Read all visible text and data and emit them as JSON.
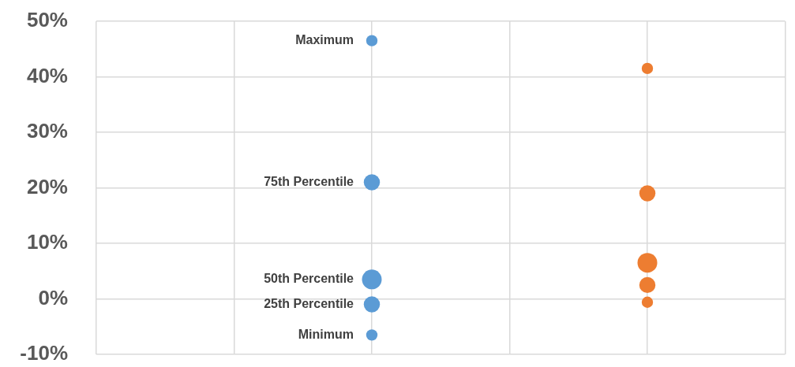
{
  "chart_data": {
    "type": "bubble",
    "categories": [
      null,
      null,
      null,
      null,
      null,
      null
    ],
    "ylim": [
      -10,
      50
    ],
    "yticks": [
      {
        "value": -10,
        "label": "-10%"
      },
      {
        "value": 0,
        "label": "0%"
      },
      {
        "value": 10,
        "label": "10%"
      },
      {
        "value": 20,
        "label": "20%"
      },
      {
        "value": 30,
        "label": "30%"
      },
      {
        "value": 40,
        "label": "40%"
      },
      {
        "value": 50,
        "label": "50%"
      }
    ],
    "tick_labels": "y",
    "grid": true,
    "series": [
      {
        "name": "Maximum",
        "colors": [
          null,
          null,
          "#5b9bd5",
          null,
          "#ed7d31",
          null
        ],
        "values": [
          null,
          null,
          46.5,
          null,
          41.5,
          null
        ],
        "sizes": [
          null,
          null,
          0.33,
          null,
          0.33,
          null
        ]
      },
      {
        "name": "75th Percentile",
        "colors": [
          null,
          null,
          "#5b9bd5",
          null,
          "#ed7d31",
          null
        ],
        "values": [
          null,
          null,
          21,
          null,
          19,
          null
        ],
        "sizes": [
          null,
          null,
          0.67,
          null,
          0.67,
          null
        ]
      },
      {
        "name": "50th Percentile",
        "colors": [
          null,
          null,
          "#5b9bd5",
          null,
          "#ed7d31",
          null
        ],
        "values": [
          null,
          null,
          3.5,
          null,
          6.5,
          null
        ],
        "sizes": [
          null,
          null,
          1,
          null,
          1,
          null
        ]
      },
      {
        "name": "25th Percentile",
        "colors": [
          null,
          null,
          "#5b9bd5",
          null,
          "#ed7d31",
          null
        ],
        "values": [
          null,
          null,
          -1,
          null,
          2.5,
          null
        ],
        "sizes": [
          null,
          null,
          0.67,
          null,
          0.67,
          null
        ]
      },
      {
        "name": "Minimum",
        "colors": [
          null,
          null,
          "#5b9bd5",
          null,
          "#ed7d31",
          null
        ],
        "values": [
          null,
          null,
          -6.5,
          null,
          -0.6,
          null
        ],
        "sizes": [
          null,
          null,
          0.33,
          null,
          0.33,
          null
        ]
      }
    ]
  }
}
